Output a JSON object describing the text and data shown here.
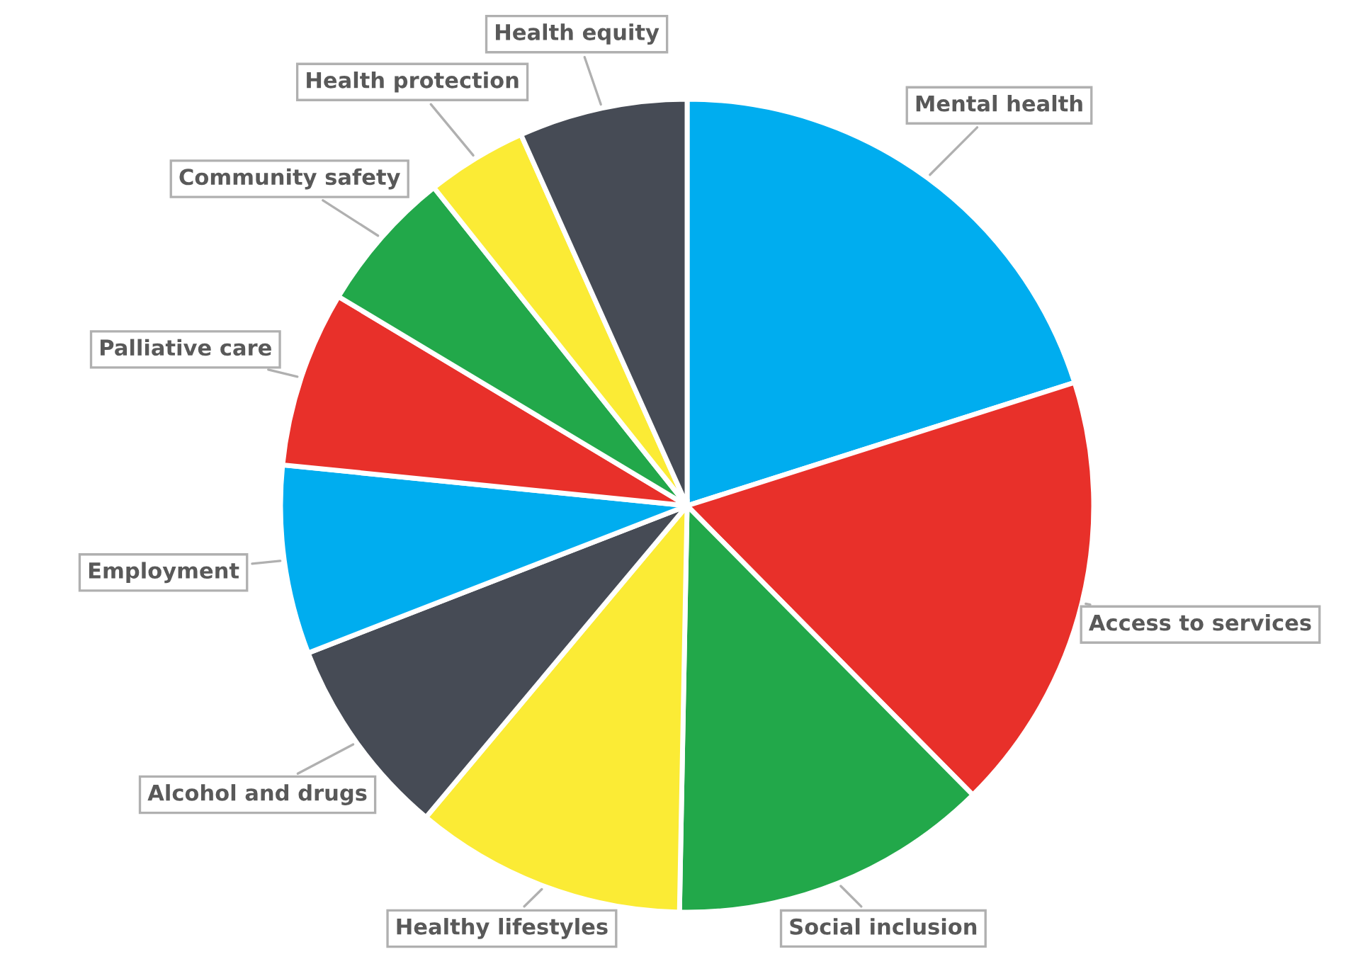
{
  "chart_data": {
    "type": "pie",
    "categories": [
      "Mental health",
      "Access to services",
      "Social inclusion",
      "Healthy lifestyles",
      "Alcohol and drugs",
      "Employment",
      "Palliative care",
      "Community safety",
      "Health protection",
      "Health equity"
    ],
    "values": [
      20.1,
      17.5,
      12.7,
      10.8,
      8.0,
      7.5,
      7.0,
      5.7,
      4.0,
      6.7
    ],
    "colors": [
      "#00adef",
      "#e8302a",
      "#22a84a",
      "#fbeb35",
      "#464b55",
      "#00adef",
      "#e8302a",
      "#22a84a",
      "#fbeb35",
      "#464b55"
    ],
    "legend": false
  }
}
